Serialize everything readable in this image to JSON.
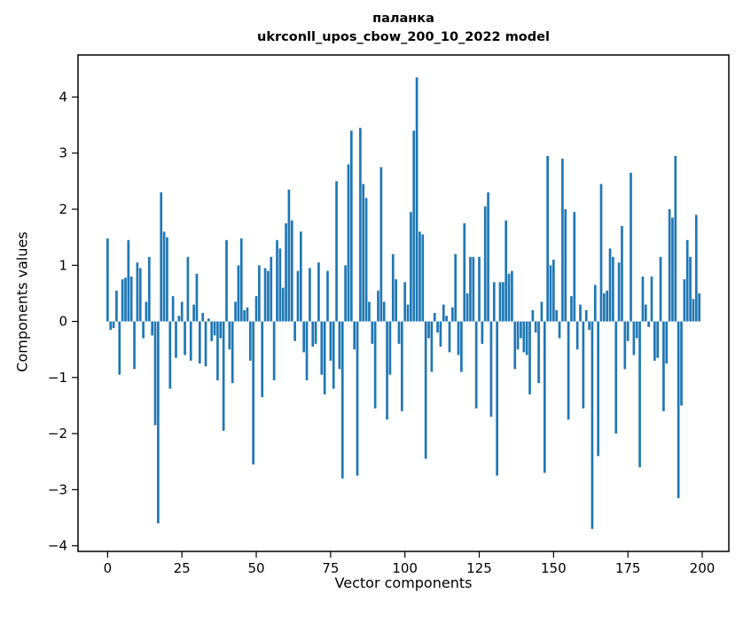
{
  "figure": {
    "title_line1": "паланка",
    "title_line2": "ukrconll_upos_cbow_200_10_2022 model",
    "xlabel": "Vector components",
    "ylabel": "Components values"
  },
  "chart_data": {
    "type": "bar",
    "title": "паланка — ukrconll_upos_cbow_200_10_2022 model",
    "xlabel": "Vector components",
    "ylabel": "Components values",
    "bar_color": "#1f77b4",
    "legend": "none",
    "grid": false,
    "xlim": [
      -9.95,
      208.95
    ],
    "ylim": [
      -4.1,
      4.75
    ],
    "xticks": [
      0,
      25,
      50,
      75,
      100,
      125,
      150,
      175,
      200
    ],
    "yticks": [
      -4,
      -3,
      -2,
      -1,
      0,
      1,
      2,
      3,
      4
    ],
    "values": [
      1.48,
      -0.15,
      -0.12,
      0.55,
      -0.95,
      0.75,
      0.78,
      1.45,
      0.8,
      -0.85,
      1.05,
      0.95,
      -0.3,
      0.35,
      1.15,
      -0.25,
      -1.85,
      -3.6,
      2.3,
      1.6,
      1.5,
      -1.2,
      0.45,
      -0.65,
      0.1,
      0.35,
      -0.6,
      1.15,
      -0.7,
      0.3,
      0.85,
      -0.75,
      0.15,
      -0.8,
      0.05,
      -0.35,
      -0.25,
      -1.05,
      -0.3,
      -1.95,
      1.45,
      -0.5,
      -1.1,
      0.35,
      1.0,
      1.48,
      0.2,
      0.25,
      -0.7,
      -2.55,
      0.45,
      1.0,
      -1.35,
      0.95,
      0.9,
      1.15,
      -1.05,
      1.45,
      1.3,
      0.6,
      1.75,
      2.35,
      1.8,
      -0.35,
      0.9,
      1.6,
      -0.55,
      -1.05,
      0.95,
      -0.45,
      -0.4,
      1.05,
      -0.95,
      -1.3,
      0.9,
      -0.7,
      -1.2,
      2.5,
      -0.85,
      -2.8,
      1.0,
      2.8,
      3.4,
      -0.5,
      -2.75,
      3.45,
      2.45,
      2.2,
      0.35,
      -0.4,
      -1.55,
      0.55,
      2.75,
      0.35,
      -1.75,
      -0.95,
      1.2,
      0.75,
      -0.4,
      -1.6,
      0.7,
      0.3,
      1.95,
      3.4,
      4.35,
      1.6,
      1.55,
      -2.45,
      -0.3,
      -0.9,
      0.15,
      -0.2,
      -0.45,
      0.3,
      0.1,
      -0.55,
      0.25,
      1.2,
      -0.6,
      -0.9,
      1.75,
      0.5,
      1.15,
      1.15,
      -1.55,
      1.15,
      -0.4,
      2.05,
      2.3,
      -1.7,
      0.7,
      -2.75,
      0.7,
      0.7,
      1.8,
      0.85,
      0.9,
      -0.85,
      -0.5,
      -0.3,
      -0.55,
      -0.6,
      -1.3,
      0.2,
      -0.2,
      -1.1,
      0.35,
      -2.7,
      2.95,
      1.0,
      1.1,
      0.2,
      -0.3,
      2.9,
      2.0,
      -1.75,
      0.45,
      1.95,
      -0.5,
      0.3,
      -1.55,
      0.2,
      -0.15,
      -3.7,
      0.65,
      -2.4,
      2.45,
      0.5,
      0.55,
      1.3,
      1.15,
      -2.0,
      1.05,
      1.7,
      -0.85,
      -0.35,
      2.65,
      -0.6,
      -0.3,
      -2.6,
      0.8,
      0.3,
      -0.1,
      0.8,
      -0.7,
      -0.65,
      1.15,
      -1.6,
      -0.75,
      2.0,
      1.85,
      2.95,
      -3.15,
      -1.5,
      0.75,
      1.45,
      1.15,
      0.4,
      1.9,
      0.5
    ]
  }
}
